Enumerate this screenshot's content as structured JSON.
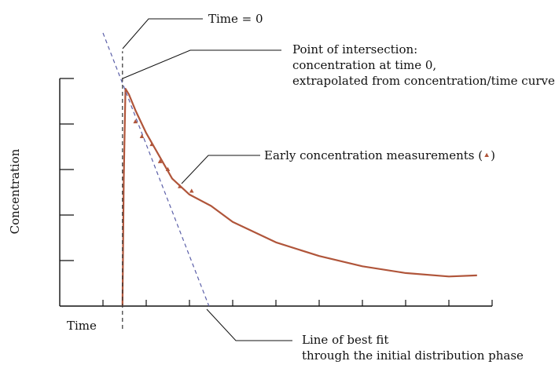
{
  "chart_data": {
    "type": "line",
    "xlabel": "Time",
    "ylabel": "Concentration",
    "xlim": [
      0,
      1
    ],
    "ylim": [
      0,
      1
    ],
    "x_ticks": [
      0.1,
      0.2,
      0.3,
      0.4,
      0.5,
      0.6,
      0.7,
      0.8,
      0.9,
      1.0
    ],
    "y_ticks": [
      0.2,
      0.4,
      0.6,
      0.8,
      1.0
    ],
    "series": [
      {
        "role": "concentration curve",
        "color": "#b0553a",
        "x": [
          0.145,
          0.148,
          0.152,
          0.16,
          0.175,
          0.2,
          0.23,
          0.26,
          0.3,
          0.35,
          0.4,
          0.5,
          0.6,
          0.7,
          0.8,
          0.9,
          0.965
        ],
        "y": [
          0.0,
          0.55,
          0.955,
          0.93,
          0.86,
          0.76,
          0.66,
          0.56,
          0.49,
          0.44,
          0.37,
          0.28,
          0.22,
          0.175,
          0.145,
          0.13,
          0.135
        ]
      },
      {
        "role": "line of best fit",
        "color": "#5b5fa8",
        "style": "dashed",
        "x": [
          0.1,
          0.345
        ],
        "y": [
          1.2,
          0.0
        ]
      },
      {
        "role": "time = 0",
        "color": "#333333",
        "style": "dashed",
        "x": [
          0.145,
          0.145
        ],
        "y": [
          -0.1,
          1.12
        ]
      }
    ],
    "points": {
      "role": "early concentration measurements",
      "marker": "triangle",
      "color": "#b0553a",
      "x": [
        0.175,
        0.19,
        0.213,
        0.232,
        0.25,
        0.278,
        0.305
      ],
      "y": [
        0.81,
        0.745,
        0.71,
        0.635,
        0.6,
        0.525,
        0.505
      ]
    },
    "annotations": {
      "time_zero": "Time = 0",
      "intersection_line1": "Point of intersection:",
      "intersection_line2": "concentration at time 0,",
      "intersection_line3": "extrapolated from concentration/time curve",
      "early_measurements": "Early concentration measurements (",
      "early_measurements_close": ")",
      "best_fit_line1": "Line of best fit",
      "best_fit_line2": "through the initial distribution phase"
    },
    "grid": false,
    "legend": "none"
  }
}
